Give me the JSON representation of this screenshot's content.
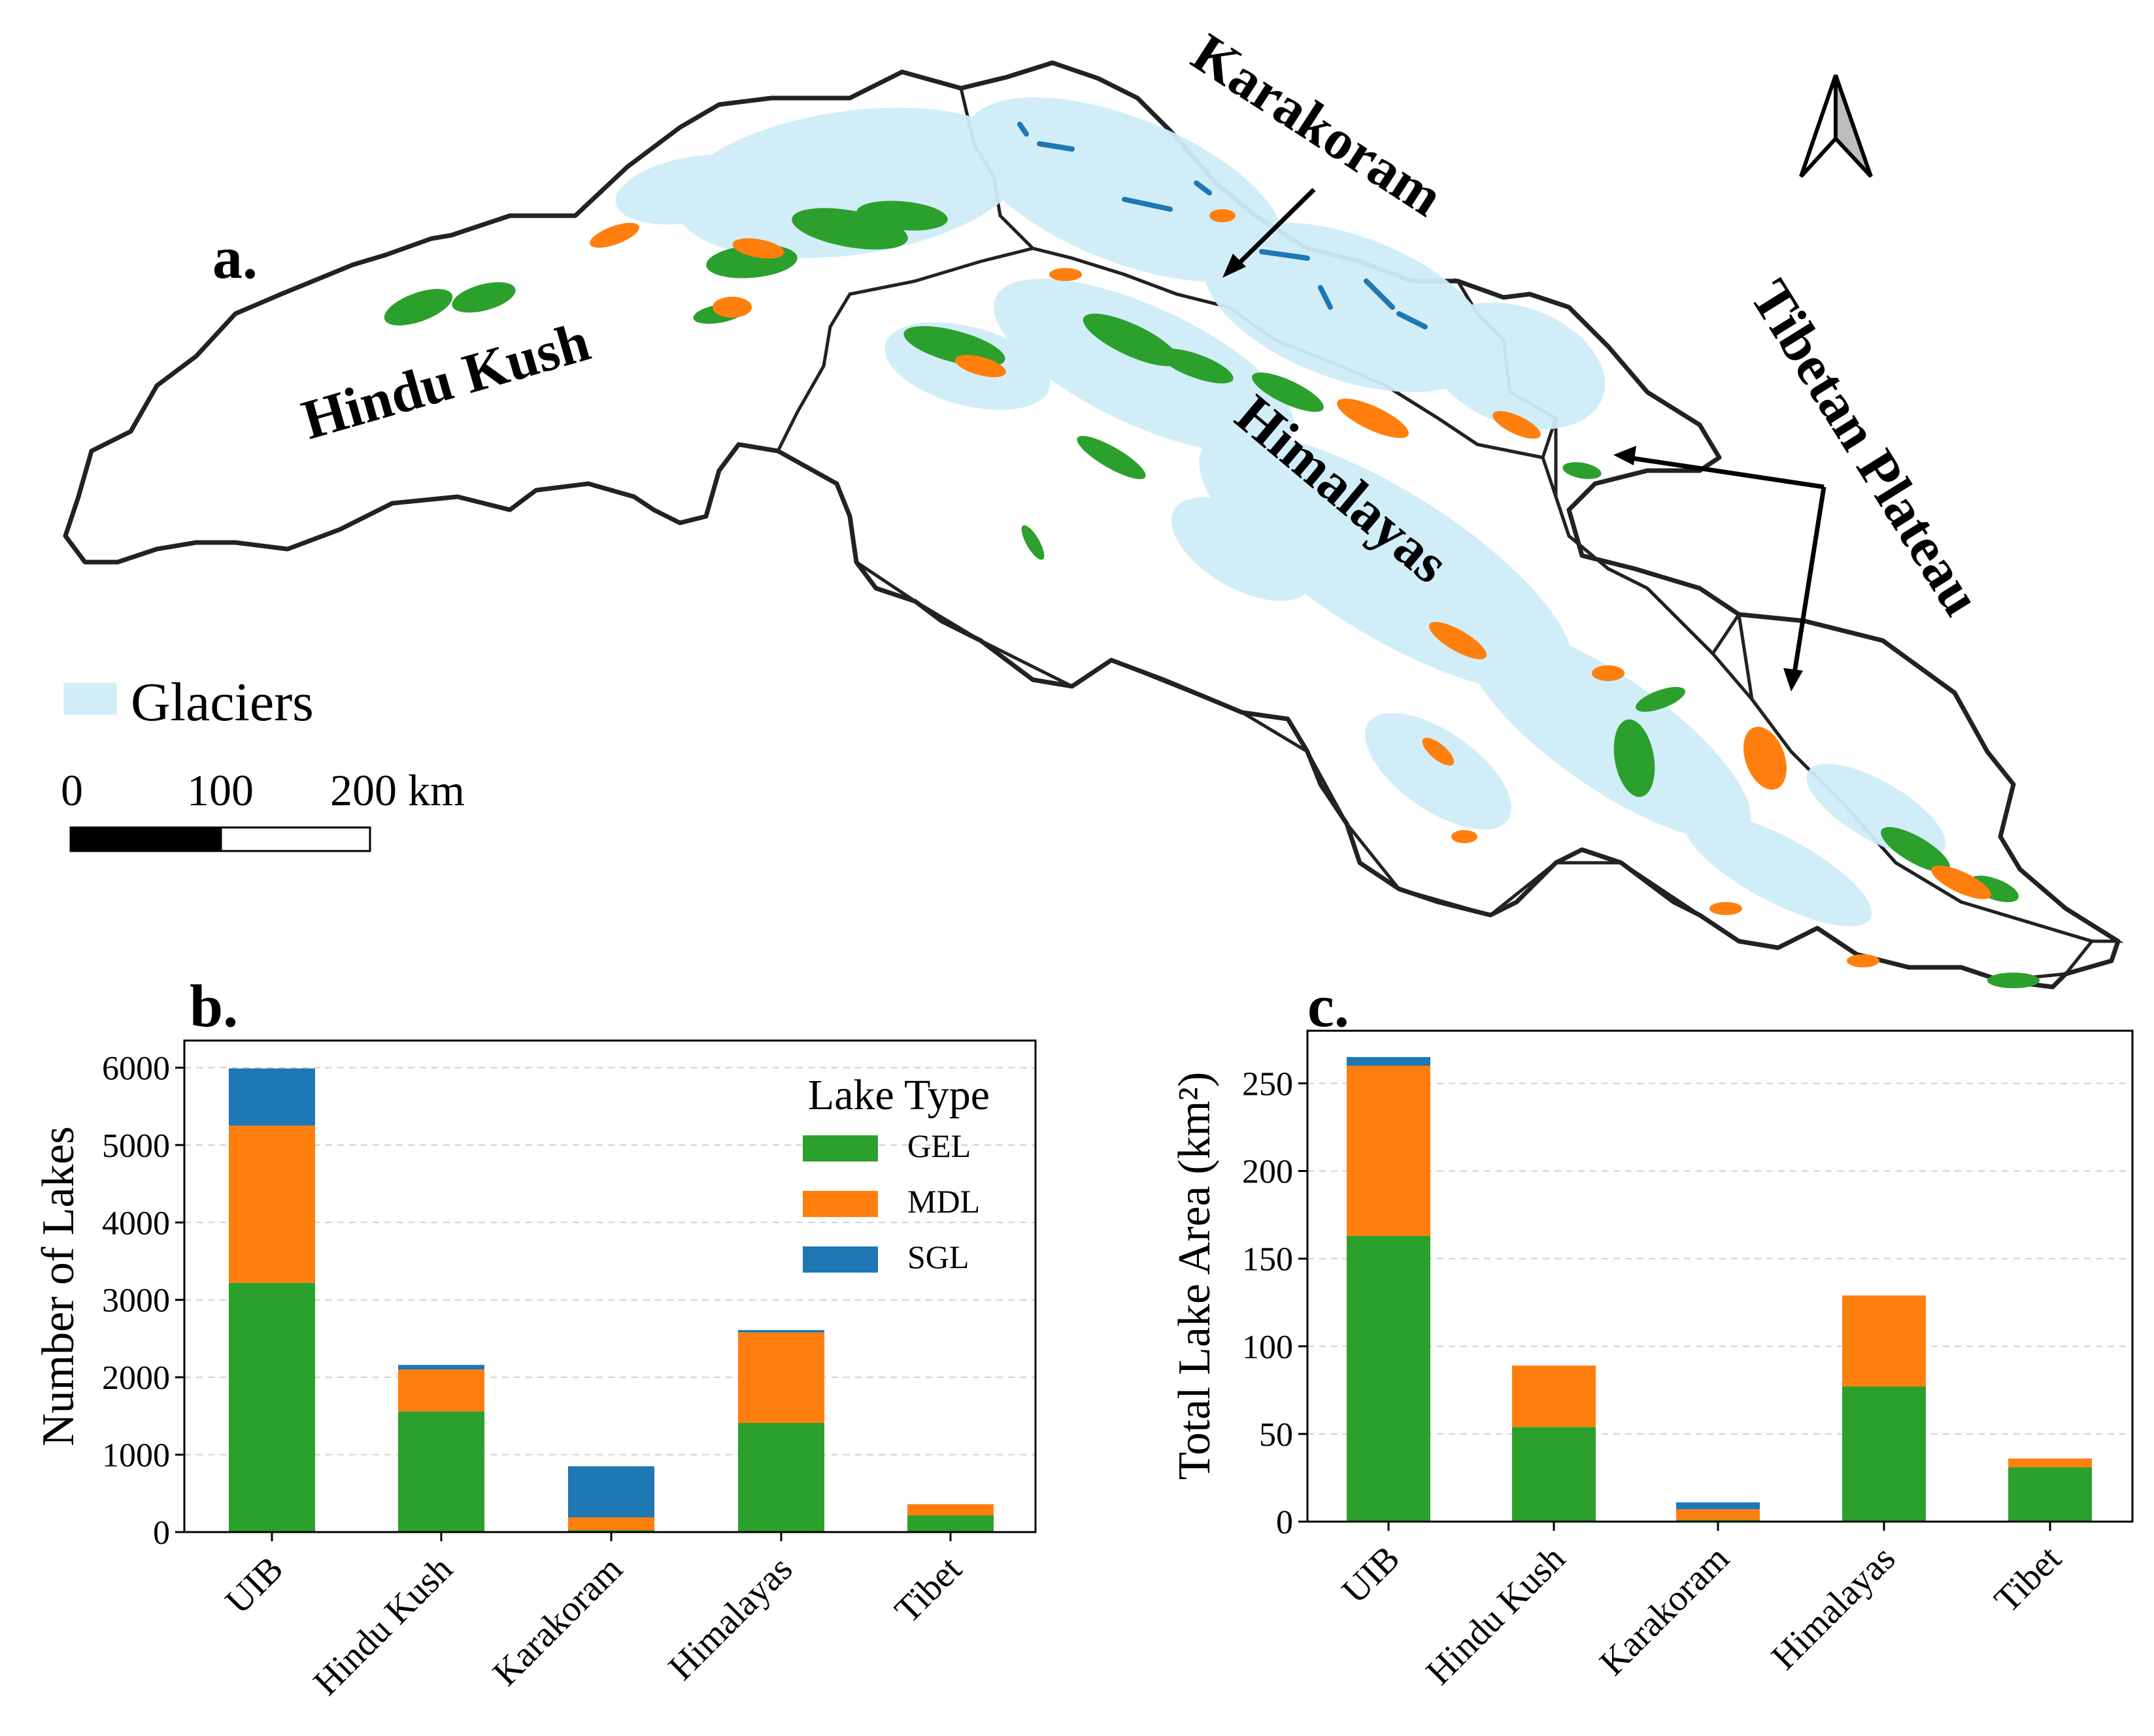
{
  "panels": {
    "a": "a.",
    "b": "b.",
    "c": "c."
  },
  "map": {
    "region_labels": {
      "hindu_kush": "Hindu Kush",
      "karakoram": "Karakoram",
      "himalayas": "Himalayas",
      "tibetan_plateau": "Tibetan Plateau"
    },
    "legend_label": "Glaciers",
    "scale_bar": {
      "ticks": [
        "0",
        "100",
        "200 km"
      ]
    },
    "colors": {
      "glacier": "#cfeef8",
      "gel": "#2ca02c",
      "mdl": "#ff7f0e",
      "sgl": "#1f77b4",
      "outline": "#222222"
    }
  },
  "chart_data": [
    {
      "type": "bar",
      "stacked": true,
      "categories": [
        "UIB",
        "Hindu Kush",
        "Karakoram",
        "Himalayas",
        "Tibet"
      ],
      "series": [
        {
          "name": "GEL",
          "color": "#2ca02c",
          "values": [
            3220,
            1560,
            25,
            1410,
            215
          ]
        },
        {
          "name": "MDL",
          "color": "#ff7f0e",
          "values": [
            2030,
            540,
            165,
            1170,
            145
          ]
        },
        {
          "name": "SGL",
          "color": "#1f77b4",
          "values": [
            740,
            60,
            660,
            30,
            0
          ]
        }
      ],
      "ylabel": "Number of Lakes",
      "ylim": [
        0,
        6350
      ],
      "yticks": [
        "0",
        "1000",
        "2000",
        "3000",
        "4000",
        "5000",
        "6000"
      ],
      "legend_title": "Lake Type",
      "legend_position": "top-right",
      "grid": "horizontal dashed"
    },
    {
      "type": "bar",
      "stacked": true,
      "categories": [
        "UIB",
        "Hindu Kush",
        "Karakoram",
        "Himalayas",
        "Tibet"
      ],
      "series": [
        {
          "name": "GEL",
          "color": "#2ca02c",
          "values": [
            163,
            54,
            1,
            77,
            31
          ]
        },
        {
          "name": "MDL",
          "color": "#ff7f0e",
          "values": [
            97,
            35,
            6,
            52,
            5
          ]
        },
        {
          "name": "SGL",
          "color": "#1f77b4",
          "values": [
            5,
            0,
            4,
            0,
            0
          ]
        }
      ],
      "ylabel": "Total Lake Area (km²)",
      "ylim": [
        0,
        280
      ],
      "yticks": [
        "0",
        "50",
        "100",
        "150",
        "200",
        "250"
      ],
      "grid": "horizontal dashed"
    }
  ]
}
